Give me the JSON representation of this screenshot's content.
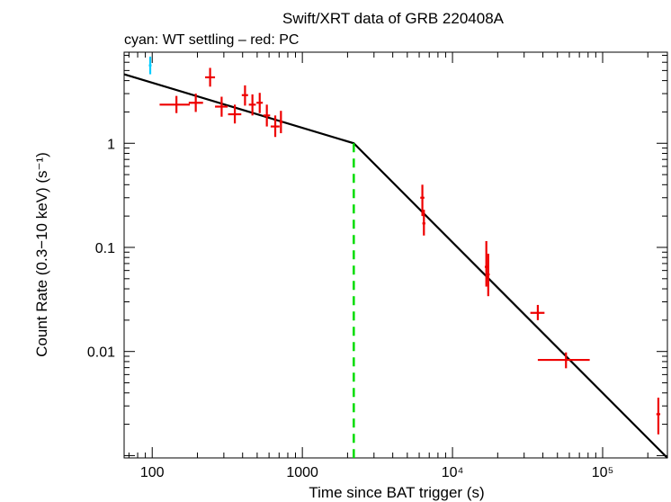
{
  "chart_data": {
    "type": "scatter",
    "title": "Swift/XRT data of GRB 220408A",
    "subtitle": "cyan: WT settling – red: PC",
    "xlabel": "Time since BAT trigger (s)",
    "ylabel": "Count Rate (0.3−10 keV) (s⁻¹)",
    "xscale": "log",
    "yscale": "log",
    "xlim": [
      65,
      270000
    ],
    "ylim": [
      0.00095,
      7.5
    ],
    "x_ticks": [
      {
        "value": 100,
        "label": "100"
      },
      {
        "value": 1000,
        "label": "1000"
      },
      {
        "value": 10000,
        "label": "10⁴"
      },
      {
        "value": 100000,
        "label": "10⁵"
      }
    ],
    "y_ticks": [
      {
        "value": 1,
        "label": "1"
      },
      {
        "value": 0.1,
        "label": "0.1"
      },
      {
        "value": 0.01,
        "label": "0.01"
      }
    ],
    "series": [
      {
        "name": "WT settling",
        "color": "#00ccff",
        "points": [
          {
            "x": 97,
            "xlo": 95,
            "xhi": 99,
            "y": 5.6,
            "ylo": 4.6,
            "yhi": 6.8
          }
        ]
      },
      {
        "name": "PC",
        "color": "#ee0000",
        "points": [
          {
            "x": 145,
            "xlo": 112,
            "xhi": 178,
            "y": 2.35,
            "ylo": 1.95,
            "yhi": 2.85
          },
          {
            "x": 195,
            "xlo": 175,
            "xhi": 218,
            "y": 2.45,
            "ylo": 2.0,
            "yhi": 3.0
          },
          {
            "x": 243,
            "xlo": 225,
            "xhi": 262,
            "y": 4.3,
            "ylo": 3.5,
            "yhi": 5.3
          },
          {
            "x": 290,
            "xlo": 262,
            "xhi": 318,
            "y": 2.25,
            "ylo": 1.8,
            "yhi": 2.8
          },
          {
            "x": 355,
            "xlo": 320,
            "xhi": 392,
            "y": 1.9,
            "ylo": 1.55,
            "yhi": 2.35
          },
          {
            "x": 415,
            "xlo": 395,
            "xhi": 435,
            "y": 2.9,
            "ylo": 2.3,
            "yhi": 3.6
          },
          {
            "x": 465,
            "xlo": 440,
            "xhi": 490,
            "y": 2.35,
            "ylo": 1.85,
            "yhi": 2.95
          },
          {
            "x": 520,
            "xlo": 495,
            "xhi": 545,
            "y": 2.45,
            "ylo": 1.95,
            "yhi": 3.05
          },
          {
            "x": 580,
            "xlo": 550,
            "xhi": 610,
            "y": 1.85,
            "ylo": 1.45,
            "yhi": 2.35
          },
          {
            "x": 660,
            "xlo": 615,
            "xhi": 705,
            "y": 1.45,
            "ylo": 1.15,
            "yhi": 1.85
          },
          {
            "x": 720,
            "xlo": 705,
            "xhi": 740,
            "y": 1.6,
            "ylo": 1.25,
            "yhi": 2.05
          },
          {
            "x": 6300,
            "xlo": 6100,
            "xhi": 6500,
            "y": 0.3,
            "ylo": 0.2,
            "yhi": 0.4
          },
          {
            "x": 6450,
            "xlo": 6300,
            "xhi": 6600,
            "y": 0.17,
            "ylo": 0.13,
            "yhi": 0.23
          },
          {
            "x": 16800,
            "xlo": 16400,
            "xhi": 17200,
            "y": 0.065,
            "ylo": 0.042,
            "yhi": 0.115
          },
          {
            "x": 17300,
            "xlo": 16900,
            "xhi": 17700,
            "y": 0.055,
            "ylo": 0.034,
            "yhi": 0.087
          },
          {
            "x": 37000,
            "xlo": 33000,
            "xhi": 41000,
            "y": 0.0235,
            "ylo": 0.02,
            "yhi": 0.028
          },
          {
            "x": 57000,
            "xlo": 37000,
            "xhi": 82000,
            "y": 0.0083,
            "ylo": 0.0069,
            "yhi": 0.0098
          },
          {
            "x": 235000,
            "xlo": 228000,
            "xhi": 242000,
            "y": 0.0025,
            "ylo": 0.0016,
            "yhi": 0.0036
          }
        ]
      }
    ],
    "model": {
      "name": "broken power law",
      "color": "#000000",
      "points": [
        {
          "x": 65,
          "y": 4.6
        },
        {
          "x": 2200,
          "y": 1.0
        },
        {
          "x": 270000,
          "y": 0.00095
        }
      ]
    },
    "break_line": {
      "x": 2200,
      "color": "#00dd00",
      "style": "dashed"
    }
  }
}
